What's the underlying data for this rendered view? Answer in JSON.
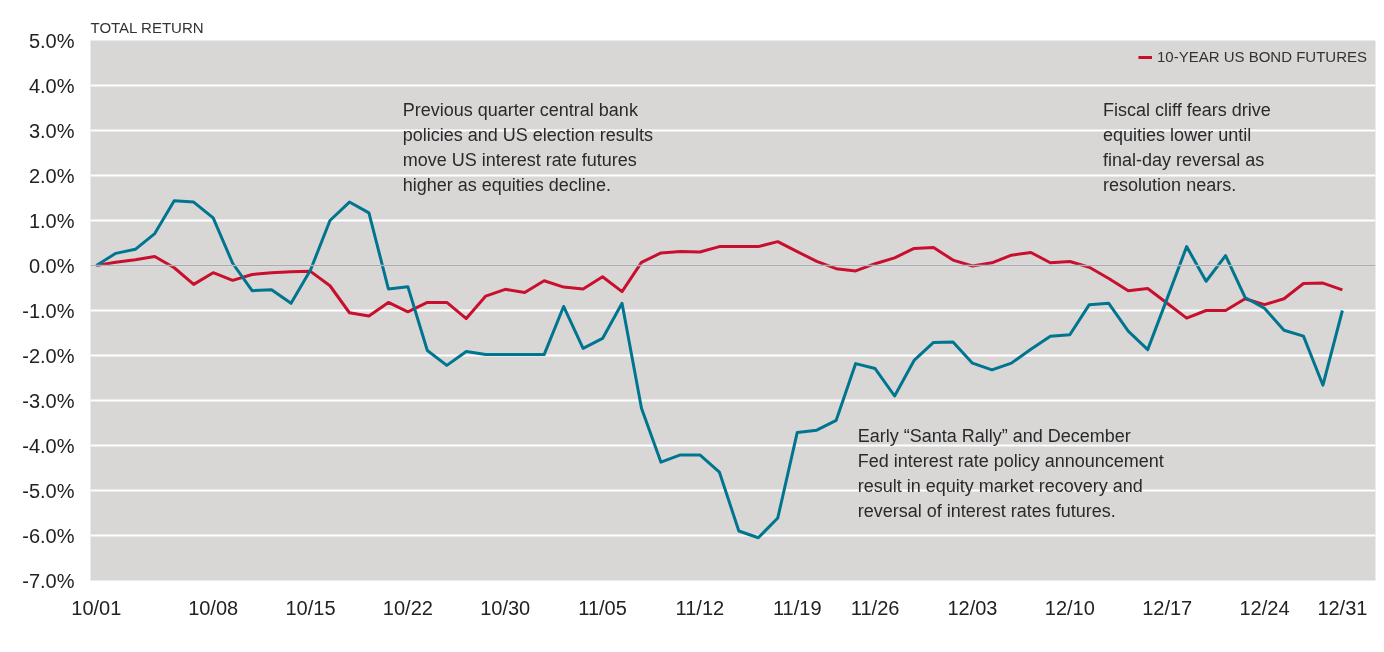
{
  "chart_data": {
    "type": "line",
    "title": "TOTAL RETURN",
    "categories": [
      "10/01",
      null,
      null,
      null,
      null,
      null,
      "10/08",
      null,
      null,
      null,
      null,
      "10/15",
      null,
      null,
      null,
      null,
      "10/22",
      null,
      null,
      null,
      null,
      "10/30",
      null,
      null,
      null,
      null,
      "11/05",
      null,
      null,
      null,
      null,
      "11/12",
      null,
      null,
      null,
      null,
      "11/19",
      null,
      null,
      null,
      "11/26",
      null,
      null,
      null,
      null,
      "12/03",
      null,
      null,
      null,
      null,
      "12/10",
      null,
      null,
      null,
      null,
      "12/17",
      null,
      null,
      null,
      null,
      "12/24",
      null,
      null,
      null,
      "12/31"
    ],
    "series": [
      {
        "name": "10-YEAR US BOND FUTURES",
        "color": "#c8102e",
        "values": [
          0,
          0.07,
          0.13,
          0.2,
          -0.05,
          -0.42,
          -0.16,
          -0.33,
          -0.2,
          -0.16,
          -0.14,
          -0.13,
          -0.45,
          -1.05,
          -1.12,
          -0.82,
          -1.03,
          -0.82,
          -0.82,
          -1.18,
          -0.68,
          -0.53,
          -0.6,
          -0.34,
          -0.48,
          -0.52,
          -0.25,
          -0.58,
          0.07,
          0.28,
          0.31,
          0.3,
          0.42,
          0.42,
          0.42,
          0.53,
          0.31,
          0.09,
          -0.07,
          -0.12,
          0.04,
          0.17,
          0.38,
          0.4,
          0.12,
          -0.01,
          0.06,
          0.23,
          0.29,
          0.06,
          0.09,
          -0.04,
          -0.29,
          -0.56,
          -0.51,
          -0.84,
          -1.17,
          -1.0,
          -1.0,
          -0.74,
          -0.87,
          -0.74,
          -0.4,
          -0.39,
          -0.54
        ]
      },
      {
        "color": "#00758f",
        "values": [
          0,
          0.27,
          0.36,
          0.71,
          1.44,
          1.41,
          1.06,
          0.05,
          -0.56,
          -0.54,
          -0.84,
          -0.1,
          1.0,
          1.41,
          1.17,
          -0.52,
          -0.47,
          -1.89,
          -2.22,
          -1.91,
          -1.98,
          -1.98,
          -1.98,
          -1.98,
          -0.91,
          -1.84,
          -1.62,
          -0.84,
          -3.17,
          -4.37,
          -4.21,
          -4.21,
          -4.59,
          -5.9,
          -6.05,
          -5.61,
          -3.71,
          -3.66,
          -3.44,
          -2.18,
          -2.29,
          -2.9,
          -2.11,
          -1.71,
          -1.7,
          -2.17,
          -2.32,
          -2.17,
          -1.86,
          -1.57,
          -1.54,
          -0.87,
          -0.84,
          -1.46,
          -1.87,
          -0.73,
          0.42,
          -0.35,
          0.22,
          -0.71,
          -0.95,
          -1.44,
          -1.57,
          -2.66,
          -1.0
        ]
      }
    ],
    "ylim": [
      -7,
      5
    ],
    "yticks": [
      {
        "value": 5,
        "label": "5.0%"
      },
      {
        "value": 4,
        "label": "4.0%"
      },
      {
        "value": 3,
        "label": "3.0%"
      },
      {
        "value": 2,
        "label": "2.0%"
      },
      {
        "value": 1,
        "label": "1.0%"
      },
      {
        "value": 0,
        "label": "0.0%"
      },
      {
        "value": -1,
        "label": "-1.0%"
      },
      {
        "value": -2,
        "label": "-2.0%"
      },
      {
        "value": -3,
        "label": "-3.0%"
      },
      {
        "value": -4,
        "label": "-4.0%"
      },
      {
        "value": -5,
        "label": "-5.0%"
      },
      {
        "value": -6,
        "label": "-6.0%"
      },
      {
        "value": -7,
        "label": "-7.0%"
      }
    ],
    "ref_lines": [
      {
        "axis": "y",
        "value": 0,
        "color": "#a9abb0"
      }
    ],
    "grid": "y",
    "legend": "top right",
    "line_style": "solid",
    "annotations": [
      "Previous quarter central bank\npolicies and US election results\nmove US interest rate futures\nhigher as equities decline.",
      "Fiscal cliff fears drive\nequities lower until\nfinal-day reversal as\nresolution nears.",
      "Early “Santa Rally” and December\nFed interest rate policy announcement\nresult in equity market recovery and\nreversal of interest rates futures."
    ]
  }
}
